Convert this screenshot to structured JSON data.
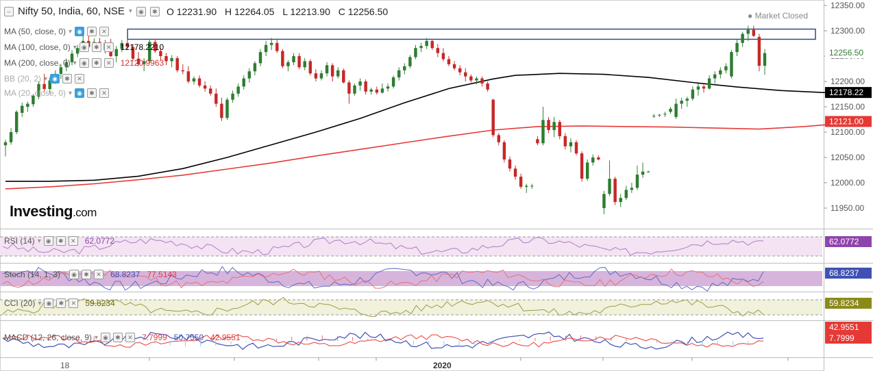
{
  "header": {
    "symbol": "Nifty 50, India, 60, NSE",
    "open": "O 12231.90",
    "high": "H 12264.05",
    "low": "L 12213.90",
    "close": "C 12256.50"
  },
  "status": "Market Closed",
  "logo": {
    "main": "Investing",
    "suffix": ".com"
  },
  "overlays": [
    {
      "label": "MA (50, close, 0)",
      "value": "",
      "color": "#999999"
    },
    {
      "label": "MA (100, close, 0)",
      "value": "12178.2210",
      "color": "#000000"
    },
    {
      "label": "MA (200, close, 0)",
      "value": "12120.9963",
      "color": "#d32f2f"
    },
    {
      "label": "BB (20, 2)",
      "value": "",
      "color": "#999999"
    },
    {
      "label": "MA (20, close, 0)",
      "value": "",
      "color": "#999999"
    }
  ],
  "indicators": {
    "rsi": {
      "label": "RSI (14)",
      "value": "62.0772",
      "badge_color": "#8e44ad"
    },
    "stoch": {
      "label": "Stoch (14, 1, 3)",
      "k": "68.8237",
      "d": "77.5143",
      "badge_color": "#3f51b5"
    },
    "cci": {
      "label": "CCI (20)",
      "value": "59.8234",
      "badge_color": "#8a8a1a"
    },
    "macd": {
      "label": "MACD (12, 26, close, 9)",
      "hist": "7.7999",
      "macd": "50.7550",
      "signal": "42.9551",
      "badge_color": "#e53935"
    }
  },
  "price_badges": {
    "last": "12256.50",
    "ma100": "12178.22",
    "ma200": "12121.00"
  },
  "colors": {
    "up": "#2e7d32",
    "down": "#c62828",
    "ma100": "#000000",
    "ma200": "#e53935",
    "rsi": "#b07cc6",
    "stoch_k": "#5c6bc0",
    "stoch_d": "#e57373",
    "cci": "#9c9c4a",
    "macd": "#3f51b5",
    "signal": "#e53935",
    "resistance": "#2e4a8a"
  },
  "chart_data": {
    "type": "candlestick",
    "y_ticks": [
      "12350.00",
      "12300.00",
      "12250.00",
      "12200.00",
      "12150.00",
      "12100.00",
      "12050.00",
      "12000.00",
      "11950.00"
    ],
    "ylim": [
      11925,
      12360
    ],
    "x_labels": [
      "18",
      "2020"
    ],
    "candles": [
      {
        "o": 12074,
        "h": 12085,
        "l": 12052,
        "c": 12080
      },
      {
        "o": 12080,
        "h": 12108,
        "l": 12075,
        "c": 12100
      },
      {
        "o": 12100,
        "h": 12143,
        "l": 12096,
        "c": 12140
      },
      {
        "o": 12138,
        "h": 12158,
        "l": 12130,
        "c": 12152
      },
      {
        "o": 12150,
        "h": 12160,
        "l": 12140,
        "c": 12156
      },
      {
        "o": 12155,
        "h": 12175,
        "l": 12150,
        "c": 12172
      },
      {
        "o": 12170,
        "h": 12200,
        "l": 12165,
        "c": 12195
      },
      {
        "o": 12195,
        "h": 12215,
        "l": 12180,
        "c": 12185
      },
      {
        "o": 12185,
        "h": 12208,
        "l": 12175,
        "c": 12202
      },
      {
        "o": 12200,
        "h": 12222,
        "l": 12195,
        "c": 12215
      },
      {
        "o": 12215,
        "h": 12235,
        "l": 12205,
        "c": 12228
      },
      {
        "o": 12228,
        "h": 12245,
        "l": 12220,
        "c": 12238
      },
      {
        "o": 12238,
        "h": 12262,
        "l": 12232,
        "c": 12255
      },
      {
        "o": 12255,
        "h": 12272,
        "l": 12248,
        "c": 12266
      },
      {
        "o": 12266,
        "h": 12290,
        "l": 12258,
        "c": 12280
      },
      {
        "o": 12280,
        "h": 12290,
        "l": 12260,
        "c": 12268
      },
      {
        "o": 12268,
        "h": 12285,
        "l": 12262,
        "c": 12278
      },
      {
        "o": 12278,
        "h": 12286,
        "l": 12258,
        "c": 12262
      },
      {
        "o": 12262,
        "h": 12282,
        "l": 12255,
        "c": 12276
      },
      {
        "o": 12276,
        "h": 12284,
        "l": 12248,
        "c": 12250
      },
      {
        "o": 12250,
        "h": 12270,
        "l": 12238,
        "c": 12264
      },
      {
        "o": 12264,
        "h": 12282,
        "l": 12258,
        "c": 12276
      },
      {
        "o": 12276,
        "h": 12284,
        "l": 12262,
        "c": 12268
      },
      {
        "o": 12268,
        "h": 12274,
        "l": 12240,
        "c": 12245
      },
      {
        "o": 12245,
        "h": 12258,
        "l": 12230,
        "c": 12234
      },
      {
        "o": 12234,
        "h": 12246,
        "l": 12220,
        "c": 12240
      },
      {
        "o": 12240,
        "h": 12284,
        "l": 12236,
        "c": 12278
      },
      {
        "o": 12278,
        "h": 12282,
        "l": 12256,
        "c": 12260
      },
      {
        "o": 12260,
        "h": 12266,
        "l": 12242,
        "c": 12250
      },
      {
        "o": 12250,
        "h": 12256,
        "l": 12232,
        "c": 12240
      },
      {
        "o": 12240,
        "h": 12252,
        "l": 12228,
        "c": 12246
      },
      {
        "o": 12246,
        "h": 12250,
        "l": 12218,
        "c": 12222
      },
      {
        "o": 12222,
        "h": 12234,
        "l": 12214,
        "c": 12220
      },
      {
        "o": 12220,
        "h": 12230,
        "l": 12196,
        "c": 12200
      },
      {
        "o": 12200,
        "h": 12210,
        "l": 12194,
        "c": 12206
      },
      {
        "o": 12206,
        "h": 12212,
        "l": 12188,
        "c": 12192
      },
      {
        "o": 12192,
        "h": 12200,
        "l": 12180,
        "c": 12186
      },
      {
        "o": 12186,
        "h": 12192,
        "l": 12172,
        "c": 12176
      },
      {
        "o": 12176,
        "h": 12186,
        "l": 12150,
        "c": 12156
      },
      {
        "o": 12156,
        "h": 12168,
        "l": 12122,
        "c": 12128
      },
      {
        "o": 12128,
        "h": 12168,
        "l": 12124,
        "c": 12164
      },
      {
        "o": 12164,
        "h": 12182,
        "l": 12158,
        "c": 12176
      },
      {
        "o": 12176,
        "h": 12196,
        "l": 12170,
        "c": 12190
      },
      {
        "o": 12190,
        "h": 12212,
        "l": 12184,
        "c": 12206
      },
      {
        "o": 12206,
        "h": 12226,
        "l": 12198,
        "c": 12220
      },
      {
        "o": 12220,
        "h": 12240,
        "l": 12212,
        "c": 12236
      },
      {
        "o": 12236,
        "h": 12264,
        "l": 12230,
        "c": 12258
      },
      {
        "o": 12258,
        "h": 12280,
        "l": 12250,
        "c": 12272
      },
      {
        "o": 12272,
        "h": 12286,
        "l": 12262,
        "c": 12276
      },
      {
        "o": 12276,
        "h": 12282,
        "l": 12256,
        "c": 12260
      },
      {
        "o": 12260,
        "h": 12264,
        "l": 12226,
        "c": 12230
      },
      {
        "o": 12230,
        "h": 12242,
        "l": 12220,
        "c": 12238
      },
      {
        "o": 12238,
        "h": 12256,
        "l": 12232,
        "c": 12250
      },
      {
        "o": 12250,
        "h": 12256,
        "l": 12224,
        "c": 12228
      },
      {
        "o": 12228,
        "h": 12246,
        "l": 12222,
        "c": 12240
      },
      {
        "o": 12240,
        "h": 12244,
        "l": 12212,
        "c": 12216
      },
      {
        "o": 12216,
        "h": 12224,
        "l": 12200,
        "c": 12206
      },
      {
        "o": 12206,
        "h": 12222,
        "l": 12202,
        "c": 12216
      },
      {
        "o": 12216,
        "h": 12238,
        "l": 12210,
        "c": 12232
      },
      {
        "o": 12232,
        "h": 12236,
        "l": 12200,
        "c": 12210
      },
      {
        "o": 12210,
        "h": 12228,
        "l": 12206,
        "c": 12222
      },
      {
        "o": 12222,
        "h": 12226,
        "l": 12196,
        "c": 12198
      },
      {
        "o": 12198,
        "h": 12202,
        "l": 12156,
        "c": 12176
      },
      {
        "o": 12176,
        "h": 12196,
        "l": 12172,
        "c": 12192
      },
      {
        "o": 12192,
        "h": 12206,
        "l": 12182,
        "c": 12200
      },
      {
        "o": 12200,
        "h": 12204,
        "l": 12174,
        "c": 12180
      },
      {
        "o": 12180,
        "h": 12188,
        "l": 12174,
        "c": 12184
      },
      {
        "o": 12184,
        "h": 12190,
        "l": 12174,
        "c": 12178
      },
      {
        "o": 12178,
        "h": 12196,
        "l": 12176,
        "c": 12186
      },
      {
        "o": 12186,
        "h": 12196,
        "l": 12180,
        "c": 12190
      },
      {
        "o": 12190,
        "h": 12212,
        "l": 12186,
        "c": 12208
      },
      {
        "o": 12208,
        "h": 12228,
        "l": 12202,
        "c": 12222
      },
      {
        "o": 12222,
        "h": 12236,
        "l": 12214,
        "c": 12230
      },
      {
        "o": 12230,
        "h": 12252,
        "l": 12226,
        "c": 12248
      },
      {
        "o": 12248,
        "h": 12272,
        "l": 12244,
        "c": 12266
      },
      {
        "o": 12266,
        "h": 12276,
        "l": 12258,
        "c": 12270
      },
      {
        "o": 12270,
        "h": 12286,
        "l": 12264,
        "c": 12280
      },
      {
        "o": 12280,
        "h": 12282,
        "l": 12262,
        "c": 12266
      },
      {
        "o": 12266,
        "h": 12274,
        "l": 12248,
        "c": 12256
      },
      {
        "o": 12256,
        "h": 12266,
        "l": 12240,
        "c": 12244
      },
      {
        "o": 12244,
        "h": 12250,
        "l": 12230,
        "c": 12234
      },
      {
        "o": 12234,
        "h": 12240,
        "l": 12222,
        "c": 12226
      },
      {
        "o": 12226,
        "h": 12232,
        "l": 12212,
        "c": 12218
      },
      {
        "o": 12218,
        "h": 12226,
        "l": 12200,
        "c": 12210
      },
      {
        "o": 12210,
        "h": 12214,
        "l": 12198,
        "c": 12202
      },
      {
        "o": 12202,
        "h": 12210,
        "l": 12194,
        "c": 12206
      },
      {
        "o": 12206,
        "h": 12210,
        "l": 12190,
        "c": 12196
      },
      {
        "o": 12196,
        "h": 12200,
        "l": 12180,
        "c": 12184
      },
      {
        "o": 12164,
        "h": 12166,
        "l": 12090,
        "c": 12094
      },
      {
        "o": 12094,
        "h": 12098,
        "l": 12074,
        "c": 12080
      },
      {
        "o": 12080,
        "h": 12084,
        "l": 12040,
        "c": 12046
      },
      {
        "o": 12046,
        "h": 12052,
        "l": 12022,
        "c": 12028
      },
      {
        "o": 12028,
        "h": 12034,
        "l": 12006,
        "c": 12012
      },
      {
        "o": 12012,
        "h": 12018,
        "l": 11988,
        "c": 11992
      },
      {
        "o": 11992,
        "h": 11998,
        "l": 11980,
        "c": 11994
      },
      {
        "o": 11994,
        "h": 11998,
        "l": 11988,
        "c": 11994
      },
      {
        "o": 12086,
        "h": 12092,
        "l": 12074,
        "c": 12078
      },
      {
        "o": 12078,
        "h": 12150,
        "l": 12074,
        "c": 12124
      },
      {
        "o": 12124,
        "h": 12130,
        "l": 12098,
        "c": 12104
      },
      {
        "o": 12104,
        "h": 12130,
        "l": 12090,
        "c": 12120
      },
      {
        "o": 12120,
        "h": 12124,
        "l": 12086,
        "c": 12092
      },
      {
        "o": 12092,
        "h": 12098,
        "l": 12066,
        "c": 12072
      },
      {
        "o": 12072,
        "h": 12088,
        "l": 12060,
        "c": 12080
      },
      {
        "o": 12080,
        "h": 12084,
        "l": 12054,
        "c": 12058
      },
      {
        "o": 12058,
        "h": 12062,
        "l": 12002,
        "c": 12008
      },
      {
        "o": 12008,
        "h": 12046,
        "l": 12004,
        "c": 12040
      },
      {
        "o": 12040,
        "h": 12056,
        "l": 12034,
        "c": 12050
      },
      {
        "o": 12050,
        "h": 12054,
        "l": 12044,
        "c": 12046
      },
      {
        "o": 11950,
        "h": 11984,
        "l": 11938,
        "c": 11978
      },
      {
        "o": 11978,
        "h": 12044,
        "l": 11974,
        "c": 12008
      },
      {
        "o": 12008,
        "h": 12012,
        "l": 11956,
        "c": 11962
      },
      {
        "o": 11962,
        "h": 11978,
        "l": 11952,
        "c": 11970
      },
      {
        "o": 11970,
        "h": 11994,
        "l": 11966,
        "c": 11986
      },
      {
        "o": 11986,
        "h": 12000,
        "l": 11980,
        "c": 11990
      },
      {
        "o": 11990,
        "h": 12034,
        "l": 11986,
        "c": 12016
      },
      {
        "o": 12016,
        "h": 12040,
        "l": 12010,
        "c": 12022
      },
      {
        "o": 12022,
        "h": 12024,
        "l": 12020,
        "c": 12022
      },
      {
        "o": 12132,
        "h": 12136,
        "l": 12128,
        "c": 12132
      },
      {
        "o": 12134,
        "h": 12136,
        "l": 12130,
        "c": 12134
      },
      {
        "o": 12136,
        "h": 12140,
        "l": 12130,
        "c": 12136
      },
      {
        "o": 12140,
        "h": 12150,
        "l": 12136,
        "c": 12146
      },
      {
        "o": 12130,
        "h": 12166,
        "l": 12126,
        "c": 12156
      },
      {
        "o": 12156,
        "h": 12168,
        "l": 12146,
        "c": 12162
      },
      {
        "o": 12162,
        "h": 12170,
        "l": 12150,
        "c": 12166
      },
      {
        "o": 12166,
        "h": 12190,
        "l": 12162,
        "c": 12184
      },
      {
        "o": 12184,
        "h": 12196,
        "l": 12172,
        "c": 12190
      },
      {
        "o": 12190,
        "h": 12194,
        "l": 12178,
        "c": 12186
      },
      {
        "o": 12186,
        "h": 12212,
        "l": 12184,
        "c": 12206
      },
      {
        "o": 12206,
        "h": 12220,
        "l": 12196,
        "c": 12214
      },
      {
        "o": 12214,
        "h": 12228,
        "l": 12206,
        "c": 12222
      },
      {
        "o": 12222,
        "h": 12236,
        "l": 12216,
        "c": 12230
      },
      {
        "o": 12210,
        "h": 12262,
        "l": 12206,
        "c": 12258
      },
      {
        "o": 12258,
        "h": 12282,
        "l": 12250,
        "c": 12276
      },
      {
        "o": 12276,
        "h": 12298,
        "l": 12268,
        "c": 12294
      },
      {
        "o": 12294,
        "h": 12310,
        "l": 12280,
        "c": 12302
      },
      {
        "o": 12302,
        "h": 12310,
        "l": 12288,
        "c": 12290
      },
      {
        "o": 12288,
        "h": 12294,
        "l": 12220,
        "c": 12231
      },
      {
        "o": 12231,
        "h": 12264,
        "l": 12213,
        "c": 12256
      }
    ],
    "ma100": [
      [
        0,
        12003
      ],
      [
        8,
        12003
      ],
      [
        16,
        12005
      ],
      [
        24,
        12013
      ],
      [
        32,
        12028
      ],
      [
        40,
        12050
      ],
      [
        48,
        12075
      ],
      [
        56,
        12100
      ],
      [
        64,
        12127
      ],
      [
        72,
        12158
      ],
      [
        80,
        12186
      ],
      [
        88,
        12205
      ],
      [
        92,
        12212
      ],
      [
        100,
        12216
      ],
      [
        108,
        12214
      ],
      [
        116,
        12208
      ],
      [
        124,
        12198
      ],
      [
        132,
        12189
      ],
      [
        140,
        12182
      ],
      [
        148,
        12178
      ],
      [
        156,
        12178
      ]
    ],
    "ma200": [
      [
        0,
        11988
      ],
      [
        8,
        11992
      ],
      [
        16,
        11998
      ],
      [
        24,
        12006
      ],
      [
        32,
        12015
      ],
      [
        40,
        12027
      ],
      [
        48,
        12039
      ],
      [
        56,
        12053
      ],
      [
        64,
        12066
      ],
      [
        72,
        12079
      ],
      [
        80,
        12092
      ],
      [
        88,
        12104
      ],
      [
        96,
        12111
      ],
      [
        104,
        12112
      ],
      [
        112,
        12111
      ],
      [
        120,
        12110
      ],
      [
        128,
        12108
      ],
      [
        136,
        12106
      ],
      [
        144,
        12111
      ],
      [
        152,
        12118
      ],
      [
        156,
        12121
      ]
    ],
    "resistance": {
      "from": 25,
      "to": 168,
      "low": 12290,
      "high": 12302
    }
  }
}
